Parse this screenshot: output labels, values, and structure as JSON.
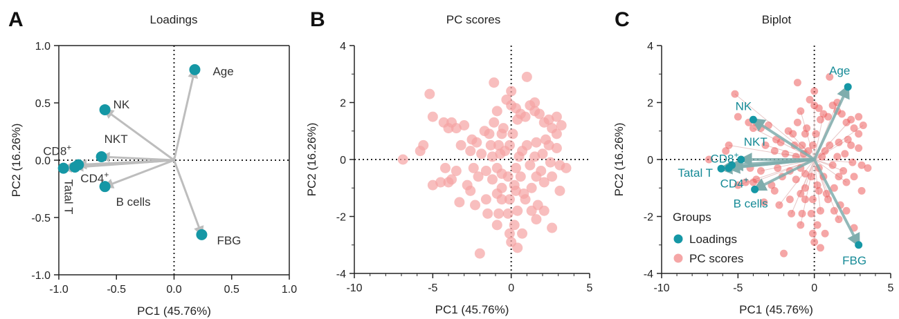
{
  "colors": {
    "loading": "#1597a5",
    "loading_text_A": "#333333",
    "loading_text_C": "#158a96",
    "score_light": "#f5a3a3",
    "score_dark": "#ec5c5c",
    "arrow_A": "#bdbdbd",
    "arrow_C": "#7fadad"
  },
  "chart_data": [
    {
      "panel": "A",
      "type": "scatter",
      "title": "Loadings",
      "xlabel": "PC1 (45.76%)",
      "ylabel": "PC2 (16.26%)",
      "xlim": [
        -1.0,
        1.0
      ],
      "ylim": [
        -1.0,
        1.0
      ],
      "xticks": [
        "-1.0",
        "-0.5",
        "0.0",
        "0.5",
        "1.0"
      ],
      "yticks": [
        "1.0",
        "0.5",
        "0.0",
        "-0.5",
        "-1.0"
      ],
      "points": [
        {
          "label": "Age",
          "x": 0.18,
          "y": 0.79
        },
        {
          "label": "NK",
          "x": -0.6,
          "y": 0.44
        },
        {
          "label": "NKT",
          "x": -0.63,
          "y": 0.03
        },
        {
          "label": "CD8⁺",
          "x": -0.83,
          "y": -0.04
        },
        {
          "label": "CD4⁺",
          "x": -0.86,
          "y": -0.06
        },
        {
          "label": "Tatal T",
          "x": -0.96,
          "y": -0.07
        },
        {
          "label": "B cells",
          "x": -0.6,
          "y": -0.23
        },
        {
          "label": "FBG",
          "x": 0.24,
          "y": -0.65
        }
      ]
    },
    {
      "panel": "B",
      "type": "scatter",
      "title": "PC scores",
      "xlabel": "PC1 (45.76%)",
      "ylabel": "PC2 (16.26%)",
      "xlim": [
        -10,
        5
      ],
      "ylim": [
        -4,
        4
      ],
      "xticks": [
        "-10",
        "-5",
        "0",
        "5"
      ],
      "yticks": [
        "4",
        "2",
        "0",
        "-2",
        "-4"
      ],
      "points": [
        [
          -5.2,
          2.3
        ],
        [
          -5,
          1.5
        ],
        [
          -4.3,
          1.3
        ],
        [
          -4,
          1.1
        ],
        [
          -3.8,
          1.3
        ],
        [
          -3.5,
          1.1
        ],
        [
          -3.2,
          0.5
        ],
        [
          -2.6,
          0.3
        ],
        [
          -2.2,
          0.6
        ],
        [
          -1.9,
          0.2
        ],
        [
          -1.4,
          0.9
        ],
        [
          -1.1,
          1.3
        ],
        [
          -0.8,
          0.5
        ],
        [
          -0.6,
          0.9
        ],
        [
          -0.3,
          2.1
        ],
        [
          0,
          1.9
        ],
        [
          0,
          2.4
        ],
        [
          0.3,
          1.8
        ],
        [
          0.6,
          1.6
        ],
        [
          0.9,
          1.5
        ],
        [
          1.2,
          1.9
        ],
        [
          1.5,
          2
        ],
        [
          1.8,
          1.6
        ],
        [
          2.1,
          1.3
        ],
        [
          2.4,
          1.4
        ],
        [
          2.6,
          1.1
        ],
        [
          2.9,
          1.5
        ],
        [
          3.2,
          1.2
        ],
        [
          -1.1,
          2.7
        ],
        [
          1,
          2.9
        ],
        [
          1.5,
          1.7
        ],
        [
          0.4,
          1.4
        ],
        [
          -0.5,
          1.1
        ],
        [
          -0.9,
          1.7
        ],
        [
          -0.1,
          0.5
        ],
        [
          -0.9,
          -0.3
        ],
        [
          -0.2,
          -0.6
        ],
        [
          0.3,
          -0.3
        ],
        [
          0.7,
          0.3
        ],
        [
          1.2,
          -0.2
        ],
        [
          1.6,
          0.6
        ],
        [
          2,
          0.2
        ],
        [
          2.5,
          -0.1
        ],
        [
          2.9,
          0.4
        ],
        [
          3.1,
          -0.2
        ],
        [
          -5.6,
          0.5
        ],
        [
          -5.8,
          0.3
        ],
        [
          -6.9,
          0
        ],
        [
          -5,
          -0.9
        ],
        [
          -4.2,
          -0.3
        ],
        [
          -3.8,
          -0.7
        ],
        [
          -3.5,
          -0.4
        ],
        [
          -2.8,
          -0.9
        ],
        [
          -2.4,
          -0.3
        ],
        [
          -2.1,
          -0.6
        ],
        [
          -1.6,
          -0.4
        ],
        [
          -1.2,
          -0.7
        ],
        [
          -0.6,
          -1
        ],
        [
          -0.1,
          -1.4
        ],
        [
          0.3,
          -1.1
        ],
        [
          0.8,
          -1.2
        ],
        [
          1.3,
          -1
        ],
        [
          1.6,
          -0.6
        ],
        [
          2.1,
          -0.8
        ],
        [
          2.6,
          -0.6
        ],
        [
          3.1,
          -1.1
        ],
        [
          -1.5,
          -1.9
        ],
        [
          -0.8,
          -1.9
        ],
        [
          -0.2,
          -1.9
        ],
        [
          0.4,
          -1.8
        ],
        [
          1.3,
          -1.8
        ],
        [
          2.1,
          -1.8
        ],
        [
          -0.9,
          -2.3
        ],
        [
          0.2,
          -2.3
        ],
        [
          0.7,
          -2.6
        ],
        [
          1.6,
          -2.1
        ],
        [
          2.6,
          -2.4
        ],
        [
          -0.1,
          -2.6
        ],
        [
          0,
          -2.9
        ],
        [
          -2,
          -3.3
        ],
        [
          0.4,
          -3.1
        ],
        [
          -0.9,
          -1.2
        ],
        [
          -0.6,
          -1.4
        ],
        [
          0.2,
          -0.9
        ],
        [
          0.9,
          -1.4
        ],
        [
          1.7,
          -1.6
        ],
        [
          -1.6,
          -1.4
        ],
        [
          -2.3,
          -1.6
        ],
        [
          -2.6,
          -1.1
        ],
        [
          -3.3,
          -1.5
        ],
        [
          -4,
          -0.8
        ],
        [
          -4.5,
          -0.8
        ],
        [
          -0.7,
          0.2
        ],
        [
          0.5,
          0.1
        ],
        [
          1,
          0.5
        ],
        [
          1.5,
          0.1
        ],
        [
          2.2,
          0.7
        ],
        [
          2.9,
          0.9
        ],
        [
          3.5,
          -0.3
        ],
        [
          -1.7,
          1
        ],
        [
          -2.5,
          0.7
        ],
        [
          -3,
          1.2
        ],
        [
          -1.3,
          0.5
        ],
        [
          -0.4,
          0.3
        ],
        [
          0.1,
          0.9
        ],
        [
          -1.2,
          0.1
        ],
        [
          -0.6,
          -0.5
        ],
        [
          0.6,
          -0.6
        ],
        [
          1.9,
          -0.4
        ],
        [
          2.4,
          0.5
        ]
      ]
    },
    {
      "panel": "C",
      "type": "scatter",
      "title": "Biplot",
      "xlabel": "PC1 (45.76%)",
      "ylabel": "PC2 (16.26%)",
      "xlim": [
        -10,
        5
      ],
      "ylim": [
        -4,
        4
      ],
      "xticks": [
        "-10",
        "-5",
        "0",
        "5"
      ],
      "yticks": [
        "4",
        "2",
        "0",
        "-2",
        "-4"
      ],
      "legend_title": "Groups",
      "legend": [
        "Loadings",
        "PC scores"
      ],
      "loadings": [
        {
          "label": "Age",
          "x": 2.2,
          "y": 2.55
        },
        {
          "label": "NK",
          "x": -4.0,
          "y": 1.4
        },
        {
          "label": "NKT",
          "x": -4.8,
          "y": 0
        },
        {
          "label": "CD8⁺",
          "x": -5.4,
          "y": -0.2
        },
        {
          "label": "CD4⁺",
          "x": -5.6,
          "y": -0.3
        },
        {
          "label": "Tatal T",
          "x": -6.1,
          "y": -0.32
        },
        {
          "label": "B cells",
          "x": -3.9,
          "y": -1.05
        },
        {
          "label": "FBG",
          "x": 2.9,
          "y": -3.0
        }
      ]
    }
  ]
}
